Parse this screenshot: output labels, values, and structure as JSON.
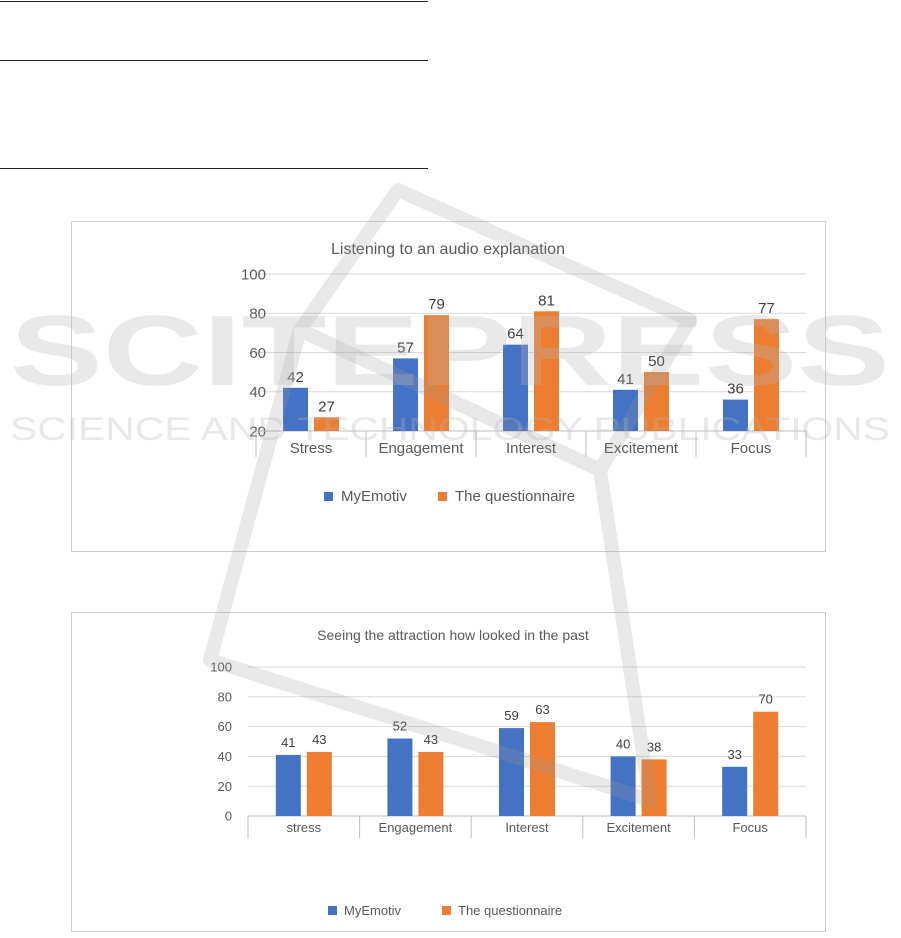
{
  "chart_data": [
    {
      "type": "bar",
      "title": "Listening to an audio explanation",
      "categories": [
        "Stress",
        "Engagement",
        "Interest",
        "Excitement",
        "Focus"
      ],
      "series": [
        {
          "name": "MyEmotiv",
          "values": [
            42,
            57,
            64,
            41,
            36
          ],
          "color": "#4472c4"
        },
        {
          "name": "The questionnaire",
          "values": [
            27,
            79,
            81,
            50,
            77
          ],
          "color": "#ed7d31"
        }
      ],
      "yticks": [
        20,
        40,
        60,
        80,
        100
      ],
      "ylim": [
        20,
        100
      ],
      "grid": true,
      "legend": "bottom"
    },
    {
      "type": "bar",
      "title": "Seeing the attraction how looked in the past",
      "categories": [
        "stress",
        "Engagement",
        "Interest",
        "Excitement",
        "Focus"
      ],
      "series": [
        {
          "name": "MyEmotiv",
          "values": [
            41,
            52,
            59,
            40,
            33
          ],
          "color": "#4472c4"
        },
        {
          "name": "The questionnaire",
          "values": [
            43,
            43,
            63,
            38,
            70
          ],
          "color": "#ed7d31"
        }
      ],
      "yticks": [
        0,
        20,
        40,
        60,
        80,
        100
      ],
      "ylim": [
        0,
        100
      ],
      "grid": true,
      "legend": "bottom"
    }
  ],
  "watermark": {
    "main": "SCITEPRESS",
    "sub": "SCIENCE AND TECHNOLOGY PUBLICATIONS"
  }
}
